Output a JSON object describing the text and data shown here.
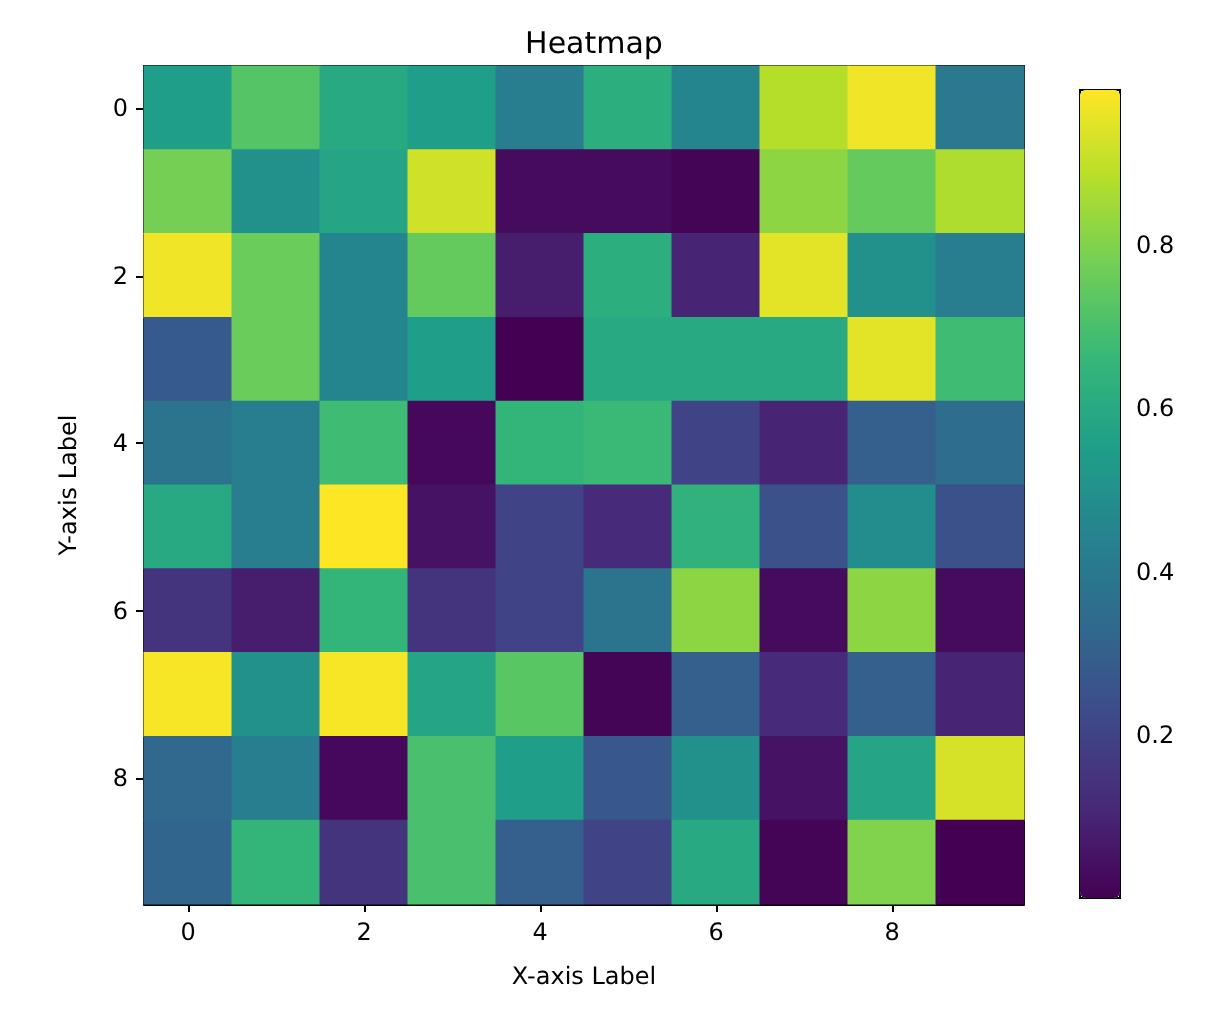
{
  "chart_data": {
    "type": "heatmap",
    "title": "Heatmap",
    "xlabel": "X-axis Label",
    "ylabel": "Y-axis Label",
    "categories": [
      "0",
      null,
      "2",
      null,
      "4",
      null,
      "6",
      null,
      "8",
      null
    ],
    "y_categories": [
      "0",
      null,
      "2",
      null,
      "4",
      null,
      "6",
      null,
      "8",
      null
    ],
    "cells": [
      [
        0.55,
        0.72,
        0.6,
        0.55,
        0.42,
        0.62,
        0.45,
        0.88,
        0.97,
        0.4
      ],
      [
        0.78,
        0.5,
        0.58,
        0.92,
        0.03,
        0.03,
        0.01,
        0.82,
        0.75,
        0.87
      ],
      [
        0.97,
        0.76,
        0.45,
        0.75,
        0.08,
        0.62,
        0.1,
        0.95,
        0.5,
        0.42
      ],
      [
        0.28,
        0.76,
        0.45,
        0.55,
        0.0,
        0.6,
        0.6,
        0.6,
        0.95,
        0.68
      ],
      [
        0.38,
        0.42,
        0.68,
        0.02,
        0.65,
        0.67,
        0.2,
        0.1,
        0.3,
        0.35
      ],
      [
        0.6,
        0.42,
        0.99,
        0.05,
        0.2,
        0.12,
        0.64,
        0.25,
        0.48,
        0.25
      ],
      [
        0.15,
        0.08,
        0.65,
        0.15,
        0.2,
        0.38,
        0.82,
        0.03,
        0.82,
        0.03
      ],
      [
        0.98,
        0.5,
        0.98,
        0.58,
        0.73,
        0.01,
        0.3,
        0.12,
        0.3,
        0.1
      ],
      [
        0.33,
        0.42,
        0.02,
        0.7,
        0.55,
        0.27,
        0.5,
        0.05,
        0.58,
        0.93
      ],
      [
        0.32,
        0.65,
        0.15,
        0.7,
        0.3,
        0.2,
        0.6,
        0.01,
        0.8,
        0.0
      ]
    ],
    "clim": [
      0,
      0.99
    ],
    "cticks": [
      0.2,
      0.4,
      0.6,
      0.8
    ]
  }
}
